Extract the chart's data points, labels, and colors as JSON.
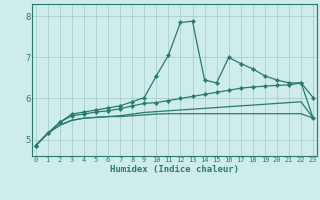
{
  "title": "",
  "xlabel": "Humidex (Indice chaleur)",
  "x": [
    0,
    1,
    2,
    3,
    4,
    5,
    6,
    7,
    8,
    9,
    10,
    11,
    12,
    13,
    14,
    15,
    16,
    17,
    18,
    19,
    20,
    21,
    22,
    23
  ],
  "line1": [
    4.85,
    5.15,
    5.42,
    5.62,
    5.67,
    5.72,
    5.77,
    5.82,
    5.92,
    6.02,
    6.55,
    7.05,
    7.85,
    7.88,
    6.45,
    6.38,
    7.0,
    6.85,
    6.72,
    6.55,
    6.45,
    6.38,
    6.38,
    6.02
  ],
  "line2": [
    4.85,
    5.15,
    5.42,
    5.58,
    5.62,
    5.67,
    5.7,
    5.75,
    5.82,
    5.88,
    5.9,
    5.95,
    6.0,
    6.05,
    6.1,
    6.15,
    6.2,
    6.25,
    6.28,
    6.3,
    6.32,
    6.33,
    6.38,
    5.52
  ],
  "line3": [
    4.85,
    5.15,
    5.35,
    5.47,
    5.52,
    5.54,
    5.56,
    5.58,
    5.62,
    5.66,
    5.68,
    5.7,
    5.72,
    5.74,
    5.76,
    5.78,
    5.8,
    5.82,
    5.84,
    5.86,
    5.88,
    5.9,
    5.92,
    5.52
  ],
  "line4": [
    4.85,
    5.15,
    5.35,
    5.47,
    5.52,
    5.54,
    5.56,
    5.56,
    5.58,
    5.6,
    5.62,
    5.63,
    5.63,
    5.63,
    5.63,
    5.63,
    5.63,
    5.63,
    5.63,
    5.63,
    5.63,
    5.63,
    5.63,
    5.52
  ],
  "line_color": "#2a7a6e",
  "bg_color": "#ceecea",
  "grid_color": "#aacfcc",
  "ylim": [
    4.6,
    8.3
  ],
  "xlim": [
    -0.3,
    23.3
  ],
  "yticks": [
    5,
    6,
    7,
    8
  ],
  "xticks": [
    0,
    1,
    2,
    3,
    4,
    5,
    6,
    7,
    8,
    9,
    10,
    11,
    12,
    13,
    14,
    15,
    16,
    17,
    18,
    19,
    20,
    21,
    22,
    23
  ],
  "marker": "D",
  "markersize": 2.2,
  "linewidth": 0.9,
  "tick_fontsize": 5.0,
  "xlabel_fontsize": 6.5
}
